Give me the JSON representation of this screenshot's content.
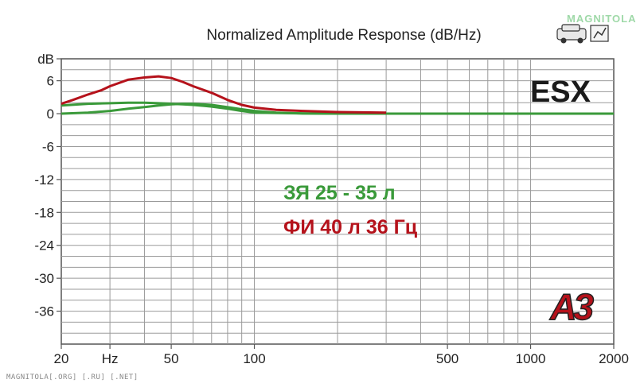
{
  "chart_data": {
    "type": "line",
    "title": "Normalized Amplitude Response (dB/Hz)",
    "xscale": "log",
    "xlim": [
      20,
      2000
    ],
    "ylim": [
      -42,
      10
    ],
    "grid": true,
    "x_tick_labels": [
      {
        "x": 20,
        "label": "20"
      },
      {
        "x": 30,
        "label": "Hz"
      },
      {
        "x": 50,
        "label": "50"
      },
      {
        "x": 100,
        "label": "100"
      },
      {
        "x": 500,
        "label": "500"
      },
      {
        "x": 1000,
        "label": "1000"
      },
      {
        "x": 2000,
        "label": "2000"
      }
    ],
    "y_tick_labels": [
      {
        "y": 10,
        "label": "dB"
      },
      {
        "y": 6,
        "label": "6"
      },
      {
        "y": 0,
        "label": "0"
      },
      {
        "y": -6,
        "label": "-6"
      },
      {
        "y": -12,
        "label": "-12"
      },
      {
        "y": -18,
        "label": "-18"
      },
      {
        "y": -24,
        "label": "-24"
      },
      {
        "y": -30,
        "label": "-30"
      },
      {
        "y": -36,
        "label": "-36"
      }
    ],
    "series": [
      {
        "name": "ФИ 40 л 36 Гц",
        "color": "#b5121b",
        "x": [
          20,
          22,
          25,
          28,
          30,
          35,
          40,
          45,
          50,
          55,
          60,
          70,
          80,
          90,
          100,
          120,
          150,
          200,
          300
        ],
        "y": [
          1.8,
          2.5,
          3.5,
          4.3,
          5.0,
          6.2,
          6.6,
          6.8,
          6.5,
          5.8,
          5.0,
          3.8,
          2.5,
          1.6,
          1.1,
          0.7,
          0.5,
          0.3,
          0.2
        ]
      },
      {
        "name": "ЗЯ 25 - 35 л",
        "color": "#3a9a3a",
        "x": [
          20,
          25,
          30,
          35,
          40,
          45,
          50,
          55,
          60,
          70,
          80,
          90,
          100,
          150,
          200,
          500,
          1000,
          2000
        ],
        "y": [
          1.5,
          1.8,
          1.9,
          2.0,
          2.0,
          1.9,
          1.8,
          1.7,
          1.6,
          1.3,
          0.9,
          0.5,
          0.2,
          0.05,
          0.0,
          0.0,
          0.0,
          0.0
        ]
      },
      {
        "name": "",
        "color": "#3a9a3a",
        "x": [
          20,
          25,
          30,
          35,
          40,
          45,
          50,
          55,
          60,
          70,
          80,
          90,
          100,
          120,
          150,
          200,
          500,
          1000,
          2000
        ],
        "y": [
          0.0,
          0.2,
          0.5,
          0.9,
          1.2,
          1.5,
          1.7,
          1.8,
          1.8,
          1.6,
          1.2,
          0.8,
          0.5,
          0.2,
          0.05,
          0.0,
          0.0,
          0.0,
          0.0
        ]
      }
    ],
    "annotations": {
      "brand": "ESX",
      "logo": "A3"
    }
  },
  "footer_text": "MAGNITOLA[.ORG] [.RU] [.NET]",
  "corner_logo": "MAGNITOLA",
  "colors": {
    "red_series": "#b5121b",
    "green_series": "#3a9a3a",
    "grid": "#9a9a9a",
    "axis": "#555555"
  }
}
